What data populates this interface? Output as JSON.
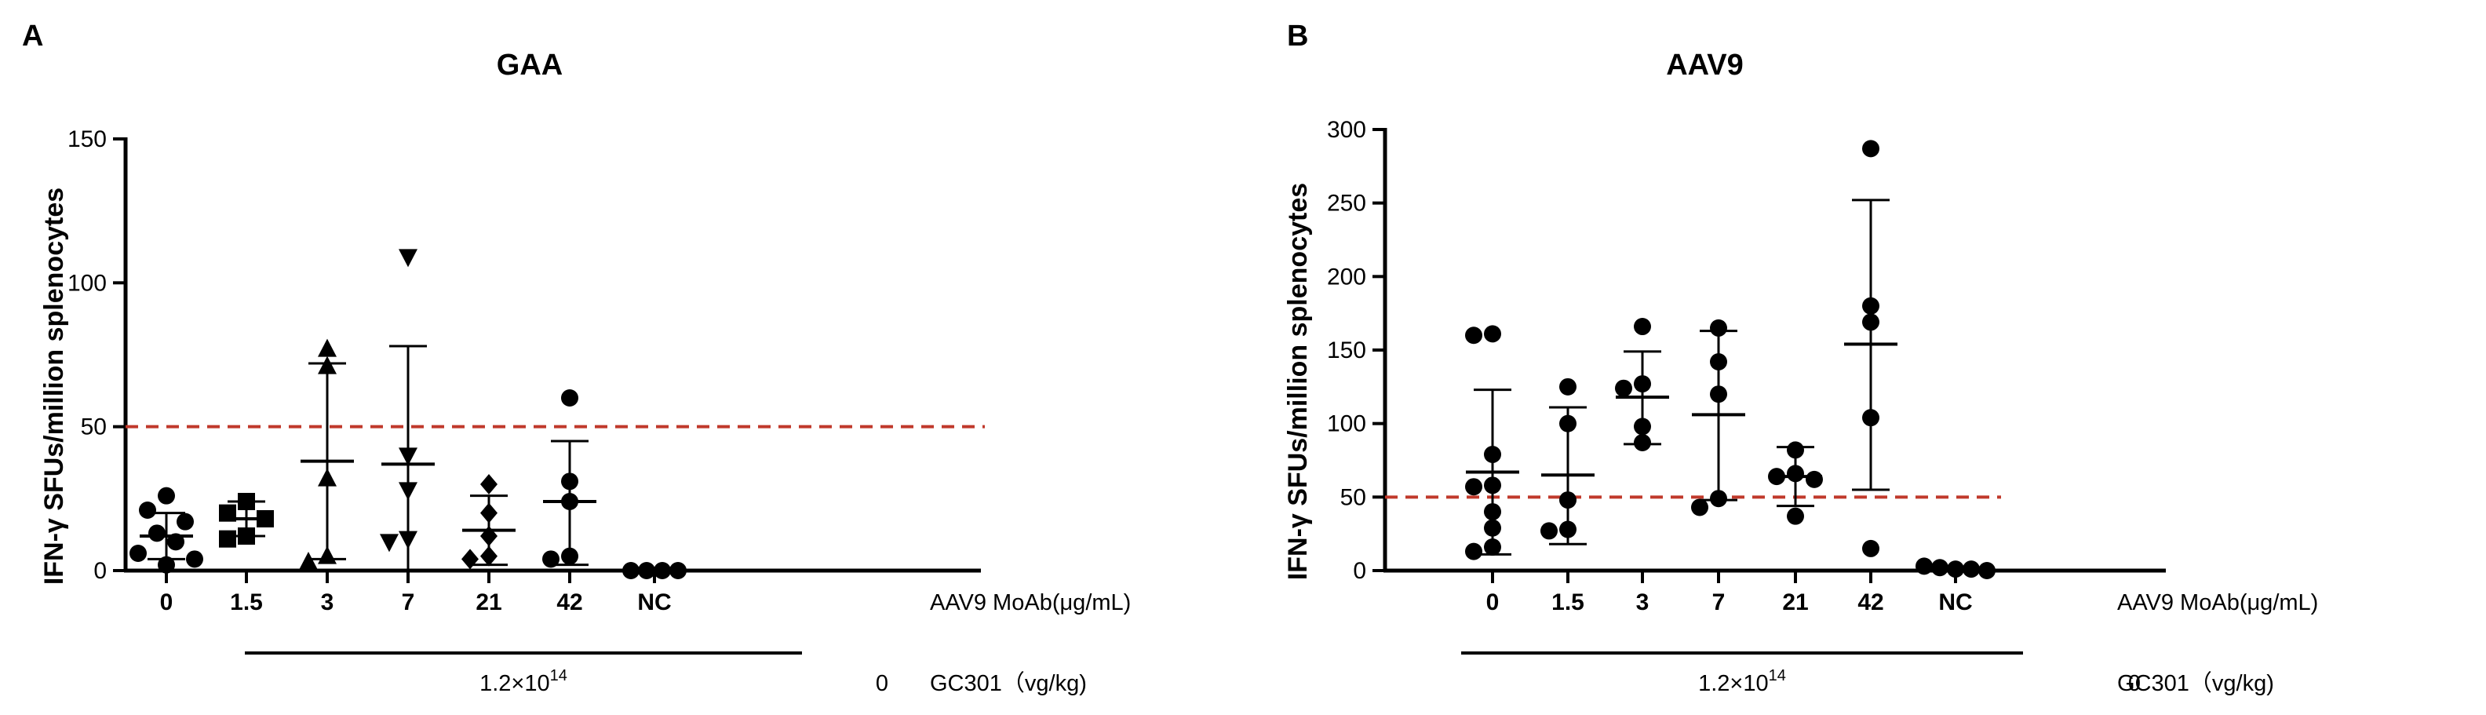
{
  "chart_data": [
    {
      "panel": "A",
      "type": "scatter",
      "title": "GAA",
      "ylabel": "IFN-γ SFUs/million splenocytes",
      "ylim": [
        0,
        150
      ],
      "yticks": [
        0,
        50,
        100,
        150
      ],
      "threshold": 50,
      "categories": [
        "0",
        "1.5",
        "3",
        "7",
        "21",
        "42",
        "NC"
      ],
      "row_labels": {
        "mab": "AAV9 MoAb(μg/mL)",
        "dose": "GC301（vg/kg)"
      },
      "dose_values": {
        "treated": "1.2×10",
        "treated_exp": "14",
        "nc": "0"
      },
      "groups": [
        {
          "category": "0",
          "marker": "circle",
          "points": [
            26,
            21,
            17,
            13,
            10,
            6,
            4,
            2
          ],
          "mean": 12,
          "sd_low": 4,
          "sd_high": 20
        },
        {
          "category": "1.5",
          "marker": "square",
          "points": [
            24,
            20,
            18,
            12,
            11
          ],
          "mean": 18,
          "sd_low": 12,
          "sd_high": 24
        },
        {
          "category": "3",
          "marker": "triangle",
          "points": [
            77,
            71,
            32,
            5,
            3
          ],
          "mean": 38,
          "sd_low": 4,
          "sd_high": 72
        },
        {
          "category": "7",
          "marker": "tri-down",
          "points": [
            109,
            40,
            28,
            11,
            10
          ],
          "mean": 37,
          "sd_low": 0,
          "sd_high": 78
        },
        {
          "category": "21",
          "marker": "diamond",
          "points": [
            30,
            20,
            12,
            5,
            4
          ],
          "mean": 14,
          "sd_low": 2,
          "sd_high": 26
        },
        {
          "category": "42",
          "marker": "circle",
          "points": [
            60,
            31,
            24,
            5,
            4
          ],
          "mean": 24,
          "sd_low": 2,
          "sd_high": 45
        },
        {
          "category": "NC",
          "marker": "circle",
          "points": [
            0,
            0,
            0,
            0
          ],
          "mean": null,
          "sd_low": null,
          "sd_high": null
        }
      ]
    },
    {
      "panel": "B",
      "type": "scatter",
      "title": "AAV9",
      "ylabel": "IFN-γ SFUs/million splenocytes",
      "ylim": [
        0,
        300
      ],
      "yticks": [
        0,
        50,
        100,
        150,
        200,
        250,
        300
      ],
      "threshold": 50,
      "categories": [
        "0",
        "1.5",
        "3",
        "7",
        "21",
        "42",
        "NC"
      ],
      "row_labels": {
        "mab": "AAV9 MoAb(μg/mL)",
        "dose": "GC301（vg/kg)"
      },
      "dose_values": {
        "treated": "1.2×10",
        "treated_exp": "14",
        "nc": "0"
      },
      "groups": [
        {
          "category": "0",
          "marker": "circle",
          "points": [
            161,
            160,
            79,
            58,
            57,
            40,
            29,
            16,
            13
          ],
          "mean": 67,
          "sd_low": 11,
          "sd_high": 123
        },
        {
          "category": "1.5",
          "marker": "circle",
          "points": [
            125,
            100,
            48,
            28,
            27
          ],
          "mean": 65,
          "sd_low": 18,
          "sd_high": 111
        },
        {
          "category": "3",
          "marker": "circle",
          "points": [
            166,
            127,
            124,
            98,
            87
          ],
          "mean": 118,
          "sd_low": 86,
          "sd_high": 149
        },
        {
          "category": "7",
          "marker": "circle",
          "points": [
            165,
            142,
            120,
            49,
            43
          ],
          "mean": 106,
          "sd_low": 48,
          "sd_high": 163
        },
        {
          "category": "21",
          "marker": "circle",
          "points": [
            82,
            66,
            64,
            62,
            37
          ],
          "mean": 64,
          "sd_low": 44,
          "sd_high": 84
        },
        {
          "category": "42",
          "marker": "circle",
          "points": [
            287,
            180,
            169,
            104,
            15
          ],
          "mean": 154,
          "sd_low": 55,
          "sd_high": 252
        },
        {
          "category": "NC",
          "marker": "circle",
          "points": [
            3,
            2,
            1,
            1,
            0
          ],
          "mean": null,
          "sd_low": null,
          "sd_high": null
        }
      ]
    }
  ],
  "colors": {
    "ink": "#000000",
    "threshold": "#c0392b"
  }
}
